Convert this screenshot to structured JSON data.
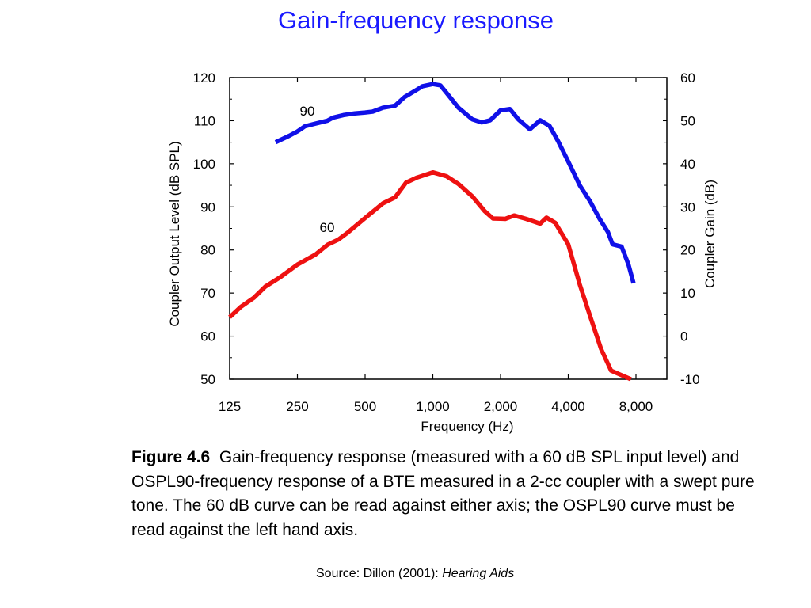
{
  "title": "Gain-frequency response",
  "chart_data": {
    "type": "line",
    "x_scale": "log2",
    "xlabel": "Frequency (Hz)",
    "ylabel_left": "Coupler Output Level (dB SPL)",
    "ylabel_right": "Coupler Gain (dB)",
    "x_ticks": [
      125,
      250,
      500,
      1000,
      2000,
      4000,
      8000
    ],
    "x_tick_labels": [
      "125",
      "250",
      "500",
      "1,000",
      "2,000",
      "4,000",
      "8,000"
    ],
    "xlim": [
      125,
      10000
    ],
    "ylim_left": [
      50,
      120
    ],
    "y_ticks_left": [
      "50",
      "60",
      "70",
      "80",
      "90",
      "100",
      "110",
      "120"
    ],
    "ylim_right": [
      -10,
      60
    ],
    "y_ticks_right": [
      "-10",
      "0",
      "10",
      "20",
      "30",
      "40",
      "50",
      "60"
    ],
    "grid": false,
    "series": [
      {
        "name": "90",
        "color": "#1010e8",
        "x": [
          200,
          230,
          250,
          270,
          300,
          340,
          360,
          400,
          450,
          500,
          540,
          600,
          680,
          750,
          850,
          900,
          1000,
          1080,
          1150,
          1300,
          1500,
          1650,
          1800,
          2000,
          2200,
          2400,
          2700,
          3000,
          3300,
          3600,
          4000,
          4500,
          5000,
          5500,
          6000,
          6300,
          6900,
          7400,
          7800
        ],
        "y": [
          105,
          106.5,
          107.5,
          108.7,
          109.3,
          110,
          110.7,
          111.3,
          111.7,
          111.9,
          112.1,
          113,
          113.5,
          115.5,
          117.2,
          118,
          118.5,
          118.2,
          116.5,
          113,
          110.3,
          109.6,
          110.1,
          112.4,
          112.7,
          110.3,
          108,
          110.1,
          108.8,
          105.3,
          100.5,
          95,
          91.3,
          87.3,
          84.2,
          81.3,
          80.8,
          76.7,
          72.3
        ]
      },
      {
        "name": "60",
        "color": "#ee1111",
        "x": [
          125,
          140,
          160,
          180,
          210,
          250,
          300,
          340,
          380,
          420,
          500,
          600,
          680,
          760,
          850,
          1000,
          1150,
          1300,
          1500,
          1700,
          1850,
          2100,
          2300,
          2600,
          3000,
          3200,
          3500,
          4000,
          4500,
          5000,
          5600,
          6200,
          7000,
          7600
        ],
        "y": [
          64.4,
          66.8,
          68.9,
          71.5,
          73.7,
          76.6,
          78.9,
          81.2,
          82.4,
          84.1,
          87.4,
          90.8,
          92.2,
          95.6,
          96.8,
          98,
          97.1,
          95.3,
          92.4,
          89,
          87.3,
          87.2,
          88,
          87.2,
          86.1,
          87.5,
          86.3,
          81.3,
          72,
          64.7,
          57,
          52,
          50.8,
          50
        ]
      }
    ]
  },
  "caption": {
    "label": "Figure 4.6",
    "text": "Gain-frequency response (measured with a 60 dB SPL input level) and OSPL90-frequency response of a BTE measured in a 2-cc coupler with a swept pure tone.  The 60 dB curve can be read against either axis; the OSPL90 curve must be read against the left hand axis."
  },
  "source": {
    "prefix": "Source:  Dillon (2001): ",
    "title": "Hearing Aids"
  }
}
